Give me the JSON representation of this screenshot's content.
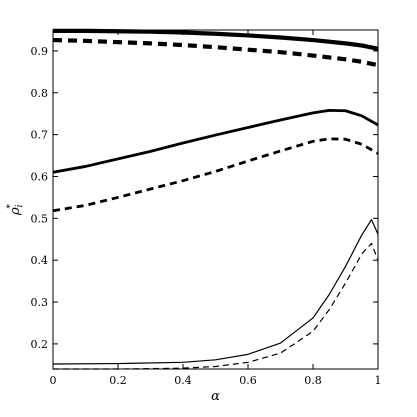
{
  "chart_data": {
    "type": "line",
    "title": "",
    "xlabel": "α",
    "ylabel": {
      "base": "ρ",
      "sup": "*",
      "sub": "i"
    },
    "xlim": [
      0,
      1
    ],
    "ylim": [
      0.14,
      0.95
    ],
    "xticks": [
      0,
      0.2,
      0.4,
      0.6,
      0.8,
      1
    ],
    "yticks": [
      0.2,
      0.3,
      0.4,
      0.5,
      0.6,
      0.7,
      0.8,
      0.9
    ],
    "xtick_labels": [
      "0",
      "0.2",
      "0.4",
      "0.6",
      "0.8",
      "1"
    ],
    "ytick_labels": [
      "0.2",
      "0.3",
      "0.4",
      "0.5",
      "0.6",
      "0.7",
      "0.8",
      "0.9"
    ],
    "grid": false,
    "legend": "none",
    "series": [
      {
        "style": "thick-solid",
        "x": [
          0,
          0.1,
          0.2,
          0.3,
          0.4,
          0.5,
          0.6,
          0.7,
          0.8,
          0.9,
          0.95,
          1.0
        ],
        "y": [
          0.948,
          0.948,
          0.947,
          0.946,
          0.944,
          0.941,
          0.937,
          0.932,
          0.926,
          0.918,
          0.913,
          0.905
        ]
      },
      {
        "style": "thick-dashed",
        "x": [
          0,
          0.1,
          0.2,
          0.3,
          0.4,
          0.5,
          0.6,
          0.7,
          0.8,
          0.9,
          0.95,
          1.0
        ],
        "y": [
          0.926,
          0.924,
          0.921,
          0.918,
          0.914,
          0.909,
          0.903,
          0.897,
          0.889,
          0.88,
          0.874,
          0.866
        ]
      },
      {
        "style": "medium-solid",
        "x": [
          0,
          0.1,
          0.2,
          0.3,
          0.4,
          0.5,
          0.6,
          0.7,
          0.8,
          0.85,
          0.9,
          0.95,
          1.0
        ],
        "y": [
          0.61,
          0.624,
          0.642,
          0.66,
          0.68,
          0.699,
          0.717,
          0.735,
          0.752,
          0.758,
          0.757,
          0.745,
          0.723
        ]
      },
      {
        "style": "medium-dashed",
        "x": [
          0,
          0.1,
          0.2,
          0.3,
          0.4,
          0.5,
          0.6,
          0.7,
          0.8,
          0.85,
          0.9,
          0.95,
          1.0
        ],
        "y": [
          0.518,
          0.531,
          0.55,
          0.57,
          0.59,
          0.612,
          0.637,
          0.661,
          0.684,
          0.69,
          0.689,
          0.677,
          0.655
        ]
      },
      {
        "style": "thin-solid",
        "x": [
          0,
          0.2,
          0.4,
          0.5,
          0.6,
          0.7,
          0.8,
          0.85,
          0.9,
          0.95,
          0.98,
          1.0
        ],
        "y": [
          0.152,
          0.153,
          0.156,
          0.162,
          0.175,
          0.202,
          0.262,
          0.318,
          0.385,
          0.46,
          0.497,
          0.462
        ]
      },
      {
        "style": "thin-dashed",
        "x": [
          0,
          0.2,
          0.4,
          0.5,
          0.6,
          0.7,
          0.8,
          0.85,
          0.9,
          0.95,
          0.98,
          1.0
        ],
        "y": [
          0.14,
          0.14,
          0.142,
          0.146,
          0.156,
          0.178,
          0.23,
          0.282,
          0.345,
          0.415,
          0.44,
          0.4
        ]
      }
    ]
  }
}
